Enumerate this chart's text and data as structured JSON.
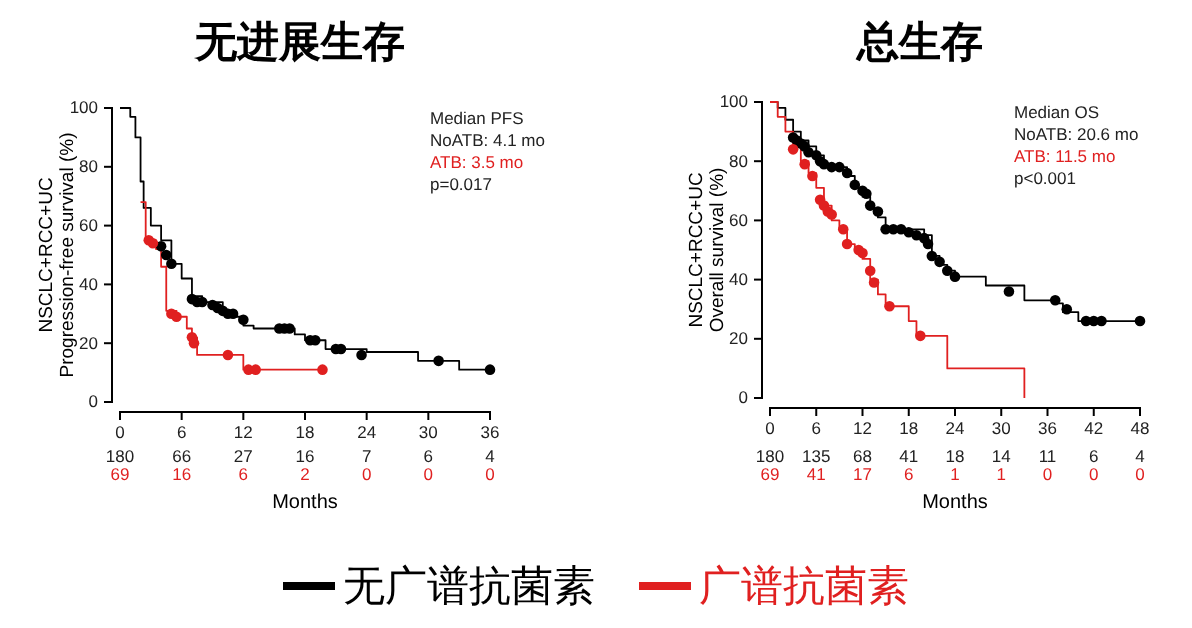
{
  "chart_data": [
    {
      "type": "step",
      "title": "无进展生存",
      "xlabel": "Months",
      "ylabel": "NSCLC+RCC+UC\nProgression-free survival (%)",
      "xlim": [
        0,
        36
      ],
      "xticks": [
        0,
        6,
        12,
        18,
        24,
        30,
        36
      ],
      "ylim": [
        0,
        100
      ],
      "yticks": [
        0,
        20,
        40,
        60,
        80,
        100
      ],
      "legend": "bottom",
      "grid": false,
      "series": [
        {
          "name": "无广谱抗菌素",
          "color": "#000000",
          "x": [
            0,
            0.5,
            1,
            1.5,
            2,
            2.3,
            3,
            4,
            5,
            6,
            7,
            8,
            10,
            11,
            12,
            13,
            17,
            18,
            20,
            24,
            29,
            33,
            36
          ],
          "values": [
            100,
            100,
            97,
            90,
            75,
            66,
            60,
            55,
            47,
            42,
            36,
            34,
            31,
            29,
            26,
            25,
            23,
            21,
            18,
            17,
            14,
            11,
            11
          ]
        },
        {
          "name": "广谱抗菌素",
          "color": "#e02020",
          "x": [
            2,
            2.5,
            3.5,
            4,
            4.5,
            5.5,
            6.5,
            7,
            7.5,
            12,
            19.7
          ],
          "values": [
            68,
            55,
            52,
            46,
            31,
            29,
            25,
            22,
            16,
            11,
            11
          ]
        },
        {
          "type": "scatter",
          "marker": "circle",
          "color": "#000000",
          "x": [
            4,
            4.5,
            5,
            7,
            7.5,
            8,
            9,
            9.5,
            10,
            10.5,
            11,
            12,
            15.5,
            16,
            16.5,
            18.5,
            19,
            21,
            21.5,
            23.5,
            31,
            36
          ],
          "values": [
            53,
            50,
            47,
            35,
            34,
            34,
            33,
            32,
            31,
            30,
            30,
            28,
            25,
            25,
            25,
            21,
            21,
            18,
            18,
            16,
            14,
            11
          ]
        },
        {
          "type": "scatter",
          "marker": "circle",
          "color": "#e02020",
          "x": [
            2.8,
            3.2,
            5,
            5.5,
            7,
            7.2,
            10.5,
            12.5,
            13.2,
            19.7
          ],
          "values": [
            55,
            54,
            30,
            29,
            22,
            20,
            16,
            11,
            11,
            11
          ]
        }
      ],
      "annotations": [
        "Median PFS",
        "NoATB: 4.1 mo",
        "ATB: 3.5 mo",
        "p=0.017",
        "180",
        "66",
        "27",
        "16",
        "7",
        "6",
        "4",
        "69",
        "16",
        "6",
        "2",
        "0",
        "0",
        "0"
      ]
    },
    {
      "type": "step",
      "title": "总生存",
      "xlabel": "Months",
      "ylabel": "NSCLC+RCC+UC\nOverall survival (%)",
      "xlim": [
        0,
        48
      ],
      "xticks": [
        0,
        6,
        12,
        18,
        24,
        30,
        36,
        42,
        48
      ],
      "ylim": [
        0,
        100
      ],
      "yticks": [
        0,
        20,
        40,
        60,
        80,
        100
      ],
      "grid": false,
      "series": [
        {
          "color": "#000000",
          "x": [
            0,
            1,
            2,
            3,
            4,
            5,
            6,
            7,
            8,
            10,
            11,
            12,
            13,
            14,
            15,
            20,
            21,
            22,
            23,
            24,
            28,
            33,
            37,
            38,
            40,
            48
          ],
          "values": [
            100,
            98,
            94,
            90,
            87,
            85,
            82,
            79,
            78,
            75,
            71,
            68,
            64,
            61,
            57,
            55,
            48,
            45,
            43,
            41,
            38,
            33,
            32,
            29,
            26,
            26
          ]
        },
        {
          "color": "#e02020",
          "x": [
            0,
            1,
            2,
            3,
            4,
            5,
            6,
            7,
            8,
            9,
            10,
            11,
            12,
            13,
            14,
            15,
            18,
            19,
            23,
            33,
            33
          ],
          "values": [
            100,
            95,
            90,
            85,
            80,
            76,
            71,
            65,
            60,
            57,
            52,
            50,
            47,
            40,
            35,
            31,
            26,
            21,
            10,
            10,
            0
          ]
        },
        {
          "type": "scatter",
          "marker": "circle",
          "color": "#000000",
          "x": [
            3,
            3.5,
            4,
            4.5,
            5,
            6,
            6.5,
            7,
            8,
            9,
            10,
            11,
            12,
            12.5,
            13,
            14,
            15,
            16,
            17,
            18,
            19,
            20,
            20.5,
            21,
            22,
            23,
            24,
            31,
            37,
            38.5,
            41,
            42,
            43,
            48
          ],
          "values": [
            88,
            87,
            86,
            85,
            83,
            82,
            80,
            79,
            78,
            78,
            76,
            72,
            70,
            69,
            65,
            63,
            57,
            57,
            57,
            56,
            55,
            54,
            52,
            48,
            46,
            43,
            41,
            36,
            33,
            30,
            26,
            26,
            26,
            26
          ]
        },
        {
          "type": "scatter",
          "marker": "circle",
          "color": "#e02020",
          "x": [
            3,
            4.5,
            5.5,
            6.5,
            7,
            7.5,
            8,
            9.5,
            10,
            11.5,
            12,
            13,
            13.5,
            15.5,
            19.5
          ],
          "values": [
            84,
            79,
            75,
            67,
            65,
            63,
            62,
            57,
            52,
            50,
            49,
            43,
            39,
            31,
            21
          ]
        }
      ],
      "annotations": [
        "Median OS",
        "NoATB: 20.6 mo",
        "ATB: 11.5 mo",
        "p<0.001",
        "180",
        "135",
        "68",
        "41",
        "18",
        "14",
        "11",
        "6",
        "4",
        "69",
        "41",
        "17",
        "6",
        "1",
        "1",
        "0",
        "0",
        "0"
      ]
    }
  ]
}
